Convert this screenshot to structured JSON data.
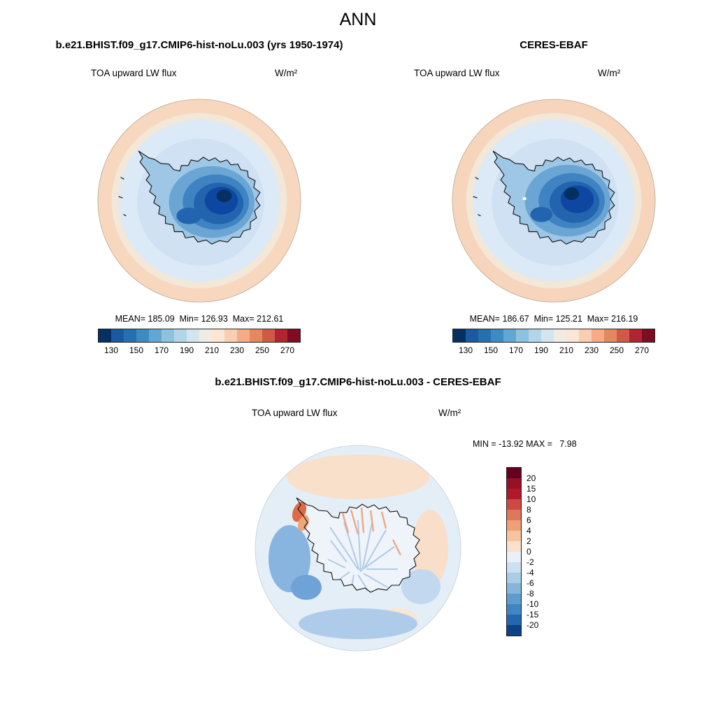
{
  "title": "ANN",
  "panels": {
    "model": {
      "header": "b.e21.BHIST.f09_g17.CMIP6-hist-noLu.003 (yrs 1950-1974)",
      "subtitle": "TOA upward LW flux",
      "units": "W/m²",
      "stats": "MEAN= 185.09  Min= 126.93  Max= 212.61"
    },
    "obs": {
      "header": "CERES-EBAF",
      "subtitle": "TOA upward LW flux",
      "units": "W/m²",
      "stats": "MEAN= 186.67  Min= 125.21  Max= 216.19"
    },
    "diff": {
      "header": "b.e21.BHIST.f09_g17.CMIP6-hist-noLu.003 - CERES-EBAF",
      "subtitle": "TOA upward LW flux",
      "units": "W/m²",
      "stats": "MIN = -13.92 MAX =   7.98"
    }
  },
  "colorbars": {
    "flux": {
      "orientation": "horizontal",
      "colors": [
        "#053061",
        "#1b5a9e",
        "#2670af",
        "#3d8bc2",
        "#62a7d2",
        "#8dc1dd",
        "#b2d5e8",
        "#d3e5f1",
        "#f0ece4",
        "#fbe5d3",
        "#f9ceb2",
        "#f5ab85",
        "#e5885f",
        "#d25849",
        "#b42430",
        "#7f0c22"
      ],
      "tick_labels": [
        "130",
        "150",
        "170",
        "190",
        "210",
        "230",
        "250",
        "270"
      ],
      "tick_indices": [
        1,
        3,
        5,
        7,
        9,
        11,
        13,
        15
      ]
    },
    "diff": {
      "orientation": "vertical",
      "colors": [
        "#67001f",
        "#951126",
        "#b2182b",
        "#cc4a42",
        "#e0765b",
        "#f0a077",
        "#f7c3a0",
        "#fbe0cb",
        "#e9f0f7",
        "#cde0f1",
        "#abcde4",
        "#85b5da",
        "#5f9ccd",
        "#3f85c1",
        "#2368ae",
        "#0b4187"
      ],
      "tick_labels": [
        "20",
        "15",
        "10",
        "8",
        "6",
        "4",
        "2",
        "0",
        "-2",
        "-4",
        "-6",
        "-8",
        "-10",
        "-15",
        "-20"
      ],
      "tick_indices": [
        1,
        2,
        3,
        4,
        5,
        6,
        7,
        8,
        9,
        10,
        11,
        12,
        13,
        14,
        15
      ]
    }
  },
  "chart_data": [
    {
      "type": "heatmap",
      "subtype": "south-polar-stereographic-map",
      "title": "b.e21.BHIST.f09_g17.CMIP6-hist-noLu.003 (yrs 1950-1974)",
      "variable": "TOA upward LW flux",
      "units": "W/m²",
      "season": "ANN",
      "stats": {
        "mean": 185.09,
        "min": 126.93,
        "max": 212.61
      },
      "colorbar_ticks": [
        130,
        150,
        170,
        190,
        210,
        230,
        250,
        270
      ],
      "colorbar_range": [
        120,
        280
      ],
      "legend_position": "bottom"
    },
    {
      "type": "heatmap",
      "subtype": "south-polar-stereographic-map",
      "title": "CERES-EBAF",
      "variable": "TOA upward LW flux",
      "units": "W/m²",
      "season": "ANN",
      "stats": {
        "mean": 186.67,
        "min": 125.21,
        "max": 216.19
      },
      "colorbar_ticks": [
        130,
        150,
        170,
        190,
        210,
        230,
        250,
        270
      ],
      "colorbar_range": [
        120,
        280
      ],
      "legend_position": "bottom"
    },
    {
      "type": "heatmap",
      "subtype": "south-polar-stereographic-difference-map",
      "title": "b.e21.BHIST.f09_g17.CMIP6-hist-noLu.003 - CERES-EBAF",
      "variable": "TOA upward LW flux",
      "units": "W/m²",
      "stats": {
        "min": -13.92,
        "max": 7.98
      },
      "colorbar_ticks": [
        20,
        15,
        10,
        8,
        6,
        4,
        2,
        0,
        -2,
        -4,
        -6,
        -8,
        -10,
        -15,
        -20
      ],
      "legend_position": "right"
    }
  ]
}
